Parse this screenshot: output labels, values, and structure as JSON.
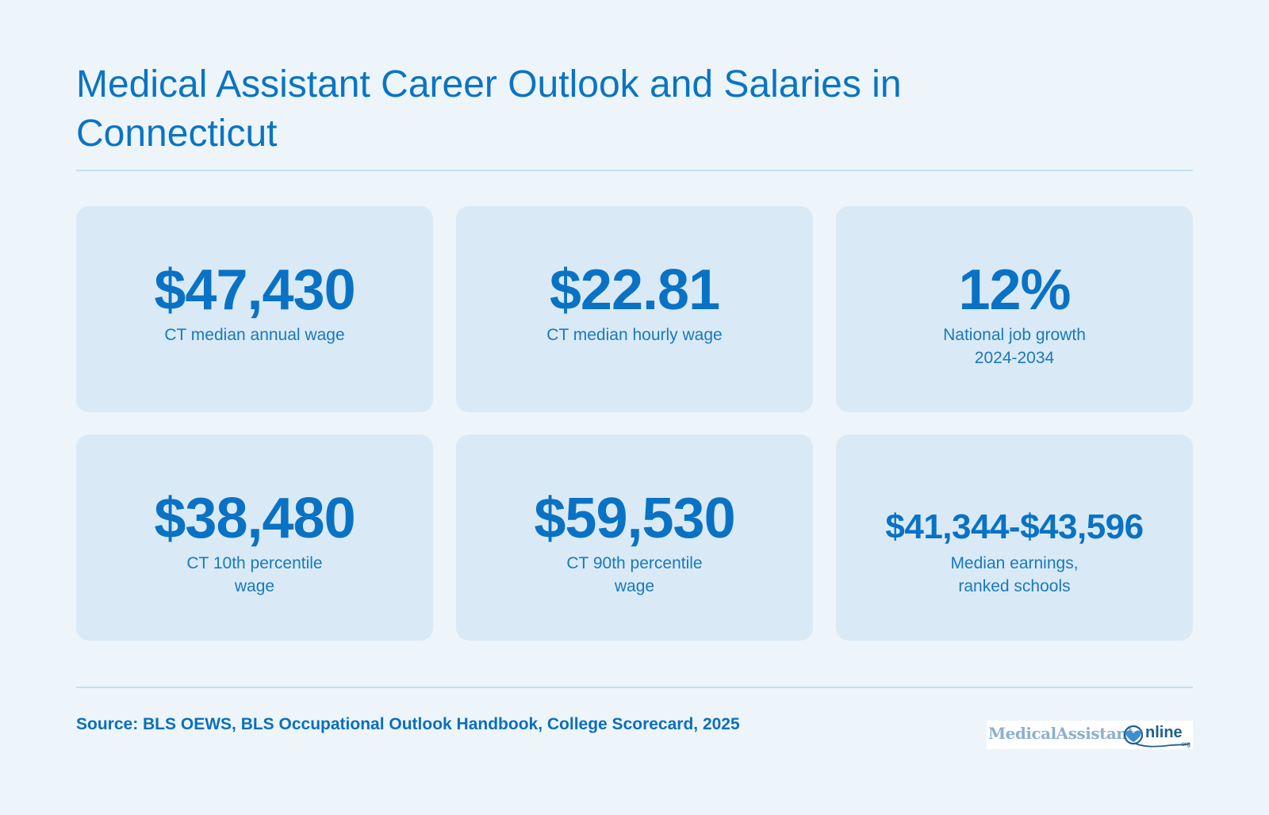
{
  "title": "Medical Assistant Career Outlook and Salaries in Connecticut",
  "stats": [
    {
      "value": "$47,430",
      "label_lines": [
        "CT median annual wage"
      ]
    },
    {
      "value": "$22.81",
      "label_lines": [
        "CT median hourly wage"
      ]
    },
    {
      "value": "12%",
      "label_lines": [
        "National job growth",
        "2024-2034"
      ]
    },
    {
      "value": "$38,480",
      "label_lines": [
        "CT 10th percentile",
        "wage"
      ]
    },
    {
      "value": "$59,530",
      "label_lines": [
        "CT 90th percentile",
        "wage"
      ]
    },
    {
      "value": "$41,344-$43,596",
      "label_lines": [
        "Median earnings,",
        "ranked schools"
      ]
    }
  ],
  "source": "Source: BLS OEWS, BLS Occupational Outlook Handbook, College Scorecard, 2025",
  "logo": {
    "brand": "MedicalAssistant",
    "online": "nline",
    "org": "org",
    "icon": "heart-stethoscope-icon"
  },
  "colors": {
    "background": "#edf5fb",
    "card": "#d9eaf6",
    "accent": "#0a72c4",
    "rule": "#c6dfee"
  }
}
